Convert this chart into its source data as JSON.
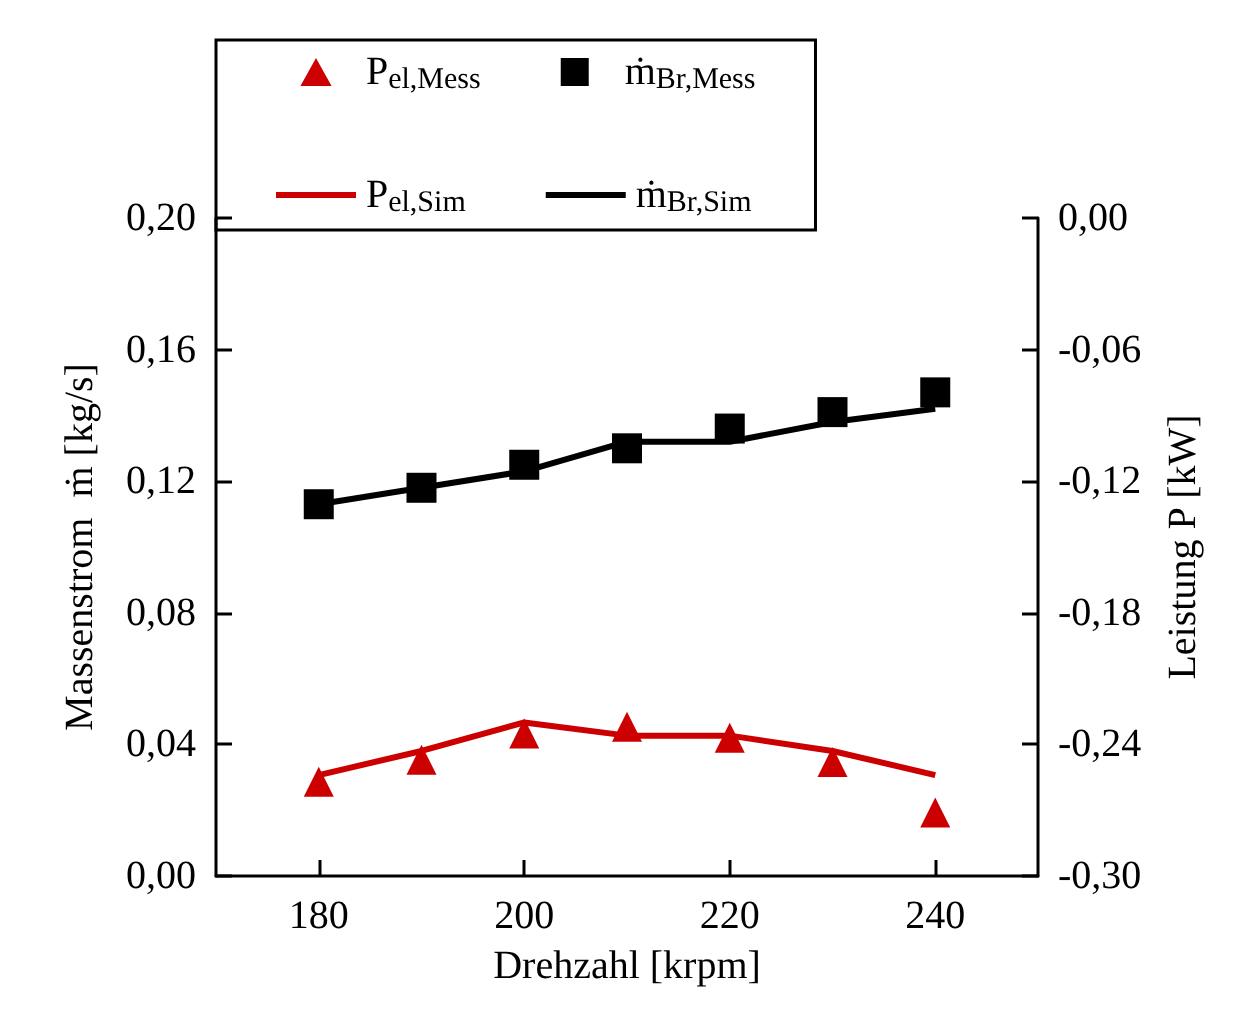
{
  "chart_data": {
    "type": "line",
    "xlabel": "Drehzahl [krpm]",
    "ylabel": "Massenstrom  ṁ [kg/s]",
    "y2label": "Leistung P [kW]",
    "x": [
      180,
      190,
      200,
      210,
      220,
      230,
      240
    ],
    "xlim": [
      170,
      250
    ],
    "xticks": [
      180,
      200,
      220,
      240
    ],
    "ylim": [
      0,
      0.2
    ],
    "yticks": [
      {
        "value": 0,
        "label": "0,00"
      },
      {
        "value": 0.04,
        "label": "0,04"
      },
      {
        "value": 0.08,
        "label": "0,08"
      },
      {
        "value": 0.12,
        "label": "0,12"
      },
      {
        "value": 0.16,
        "label": "0,16"
      },
      {
        "value": 0.2,
        "label": "0,20"
      }
    ],
    "y2lim": [
      -0.3,
      0
    ],
    "y2ticks": [
      {
        "value": -0.3,
        "label": "-0,30"
      },
      {
        "value": -0.24,
        "label": "-0,24"
      },
      {
        "value": -0.18,
        "label": "-0,18"
      },
      {
        "value": -0.12,
        "label": "-0,12"
      },
      {
        "value": -0.06,
        "label": "-0,06"
      },
      {
        "value": 0,
        "label": "0,00"
      }
    ],
    "legend": "top",
    "grid": false,
    "series": [
      {
        "name": "P$_{el,Mess}$",
        "type": "scatter",
        "marker": "triangle",
        "axis": "y2",
        "color": "#cc0000",
        "values": [
          -0.257,
          -0.247,
          -0.235,
          -0.232,
          -0.237,
          -0.248,
          -0.271
        ]
      },
      {
        "name": "ṁ$_{Br,Mess}$",
        "type": "scatter",
        "marker": "square",
        "color": "#000000",
        "values": [
          0.113,
          0.118,
          0.125,
          0.13,
          0.136,
          0.141,
          0.147
        ]
      },
      {
        "name": "P$_{el,Sim}$",
        "marker": "none",
        "axis": "y2",
        "color": "#cc0000",
        "values": [
          -0.254,
          -0.243,
          -0.23,
          -0.236,
          -0.236,
          -0.243,
          -0.254
        ]
      },
      {
        "name": "ṁ$_{Br,Sim}$",
        "marker": "none",
        "color": "#000000",
        "values": [
          0.113,
          0.118,
          0.123,
          0.132,
          0.132,
          0.138,
          0.142
        ]
      }
    ]
  }
}
